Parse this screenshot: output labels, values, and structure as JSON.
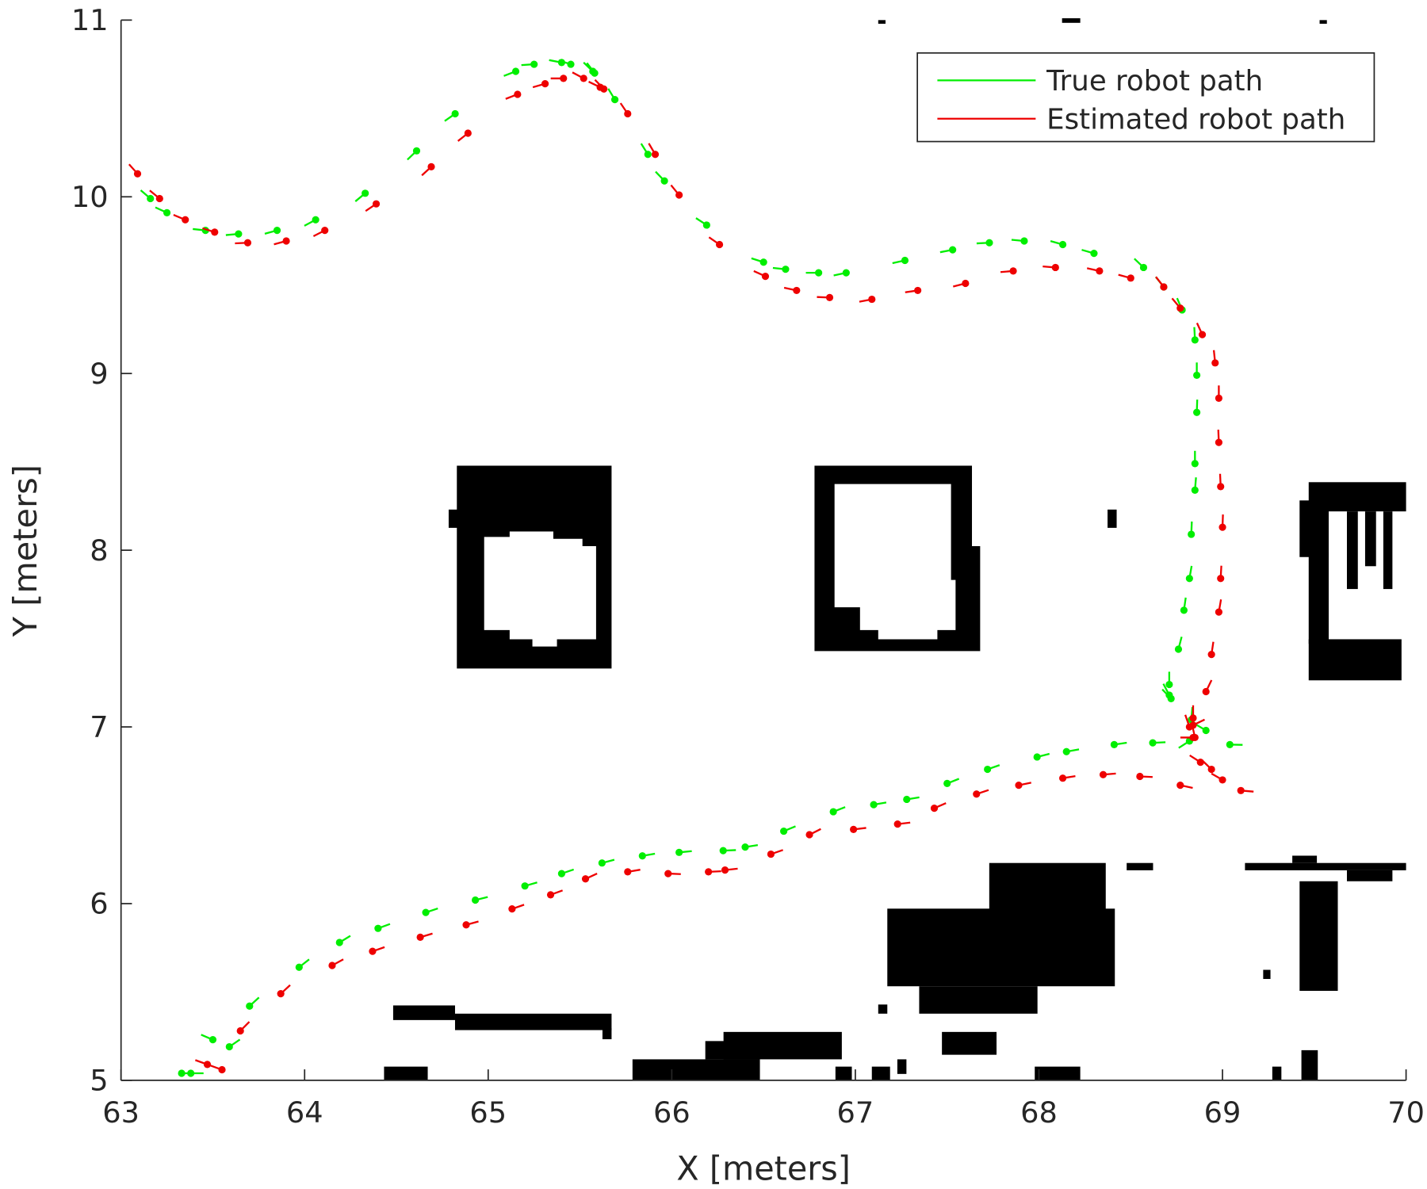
{
  "chart_data": {
    "type": "scatter",
    "xlabel": "X [meters]",
    "ylabel": "Y [meters]",
    "xlim": [
      63,
      70
    ],
    "ylim": [
      5,
      11
    ],
    "xticks": [
      63,
      64,
      65,
      66,
      67,
      68,
      69,
      70
    ],
    "yticks": [
      5,
      6,
      7,
      8,
      9,
      10,
      11
    ],
    "legend": "upper right",
    "series": [
      {
        "name": "True robot path",
        "color": "#00ee00",
        "x": [
          63.16,
          63.25,
          63.46,
          63.64,
          63.85,
          64.06,
          64.33,
          64.61,
          64.82,
          65.15,
          65.25,
          65.4,
          65.45,
          65.57,
          65.58,
          65.69,
          65.87,
          65.96,
          66.19,
          66.5,
          66.62,
          66.8,
          66.95,
          67.27,
          67.53,
          67.73,
          67.92,
          68.13,
          68.3,
          68.57,
          68.68,
          68.78,
          68.85,
          68.86,
          68.86,
          68.85,
          68.85,
          68.83,
          68.82,
          68.79,
          68.76,
          68.71,
          68.71,
          68.72,
          68.83,
          68.82,
          68.91,
          69.04,
          68.62,
          68.41,
          68.15,
          67.99,
          67.72,
          67.5,
          67.28,
          67.1,
          66.88,
          66.61,
          66.4,
          66.28,
          66.04,
          65.84,
          65.62,
          65.4,
          65.2,
          64.93,
          64.66,
          64.4,
          64.19,
          63.97,
          63.7,
          63.5,
          63.59,
          63.38,
          63.33
        ],
        "y": [
          9.99,
          9.91,
          9.81,
          9.79,
          9.81,
          9.87,
          10.02,
          10.26,
          10.47,
          10.71,
          10.75,
          10.76,
          10.75,
          10.71,
          10.7,
          10.55,
          10.24,
          10.09,
          9.84,
          9.63,
          9.59,
          9.57,
          9.57,
          9.64,
          9.7,
          9.74,
          9.75,
          9.73,
          9.68,
          9.6,
          9.49,
          9.36,
          9.19,
          8.99,
          8.78,
          8.49,
          8.34,
          8.09,
          7.84,
          7.66,
          7.44,
          7.24,
          7.18,
          7.16,
          7.04,
          6.92,
          6.98,
          6.9,
          6.91,
          6.9,
          6.86,
          6.83,
          6.76,
          6.68,
          6.59,
          6.56,
          6.52,
          6.41,
          6.32,
          6.3,
          6.29,
          6.27,
          6.23,
          6.17,
          6.1,
          6.02,
          5.95,
          5.86,
          5.78,
          5.64,
          5.42,
          5.23,
          5.19,
          5.04,
          5.04
        ]
      },
      {
        "name": "Estimated robot path",
        "color": "#ee0000",
        "x": [
          63.09,
          63.21,
          63.35,
          63.51,
          63.69,
          63.9,
          64.11,
          64.39,
          64.69,
          64.89,
          65.16,
          65.31,
          65.41,
          65.52,
          65.61,
          65.63,
          65.76,
          65.91,
          66.04,
          66.26,
          66.51,
          66.68,
          66.86,
          67.09,
          67.34,
          67.6,
          67.86,
          68.09,
          68.33,
          68.5,
          68.68,
          68.77,
          68.89,
          68.96,
          68.98,
          68.98,
          68.99,
          69.0,
          68.99,
          68.98,
          68.94,
          68.91,
          68.84,
          68.84,
          68.82,
          68.84,
          68.85,
          68.88,
          68.94,
          69.0,
          69.1,
          68.77,
          68.55,
          68.35,
          68.13,
          67.89,
          67.66,
          67.43,
          67.23,
          66.99,
          66.75,
          66.54,
          66.29,
          66.2,
          65.98,
          65.76,
          65.53,
          65.34,
          65.13,
          64.88,
          64.63,
          64.37,
          64.15,
          63.87,
          63.65,
          63.47,
          63.55
        ],
        "y": [
          10.13,
          9.99,
          9.87,
          9.8,
          9.74,
          9.75,
          9.81,
          9.96,
          10.17,
          10.36,
          10.58,
          10.64,
          10.67,
          10.67,
          10.62,
          10.61,
          10.47,
          10.24,
          10.01,
          9.73,
          9.55,
          9.47,
          9.43,
          9.42,
          9.47,
          9.51,
          9.58,
          9.6,
          9.58,
          9.54,
          9.49,
          9.37,
          9.22,
          9.06,
          8.86,
          8.61,
          8.36,
          8.13,
          7.84,
          7.65,
          7.41,
          7.2,
          7.05,
          7.01,
          7.0,
          6.94,
          6.94,
          6.8,
          6.76,
          6.7,
          6.64,
          6.67,
          6.72,
          6.73,
          6.71,
          6.67,
          6.62,
          6.54,
          6.45,
          6.42,
          6.39,
          6.28,
          6.19,
          6.18,
          6.17,
          6.18,
          6.14,
          6.05,
          5.97,
          5.88,
          5.81,
          5.73,
          5.65,
          5.49,
          5.28,
          5.09,
          5.06
        ]
      }
    ]
  }
}
